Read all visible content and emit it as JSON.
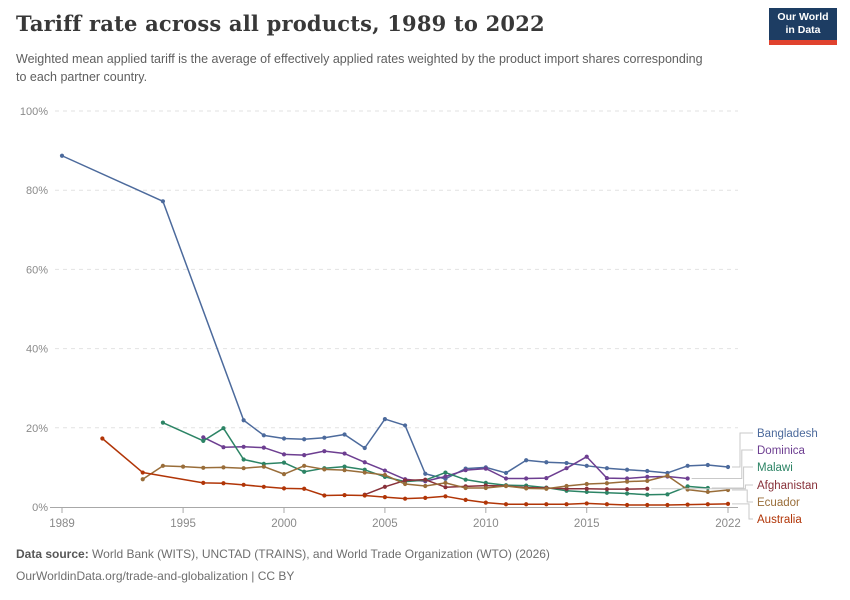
{
  "header": {
    "title": "Tariff rate across all products, 1989 to 2022",
    "subtitle": "Weighted mean applied tariff is the average of effectively applied rates weighted by the product import shares corresponding to each partner country.",
    "logo": {
      "line1": "Our World",
      "line2": "in Data",
      "bg_color": "#1d3d63",
      "accent_color": "#e0422e"
    }
  },
  "chart_data": {
    "type": "line",
    "title": "Tariff rate across all products, 1989 to 2022",
    "xlabel": "",
    "ylabel": "",
    "xlim": [
      1989,
      2022
    ],
    "ylim": [
      0,
      100
    ],
    "x_ticks": [
      1989,
      1995,
      2000,
      2005,
      2010,
      2015,
      2022
    ],
    "y_ticks": [
      0,
      20,
      40,
      60,
      80,
      100
    ],
    "y_tick_suffix": "%",
    "grid": "horizontal-dashed",
    "legend_position": "right",
    "series": [
      {
        "name": "Bangladesh",
        "color": "#4C6A9C",
        "points": [
          [
            1989,
            88.7
          ],
          [
            1994,
            77.2
          ],
          [
            1998,
            21.9
          ],
          [
            1999,
            18.1
          ],
          [
            2000,
            17.3
          ],
          [
            2001,
            17.1
          ],
          [
            2002,
            17.5
          ],
          [
            2003,
            18.3
          ],
          [
            2004,
            14.9
          ],
          [
            2005,
            22.2
          ],
          [
            2006,
            20.6
          ],
          [
            2007,
            8.4
          ],
          [
            2008,
            7.1
          ],
          [
            2009,
            9.7
          ],
          [
            2010,
            10.0
          ],
          [
            2011,
            8.6
          ],
          [
            2012,
            11.8
          ],
          [
            2013,
            11.3
          ],
          [
            2014,
            11.1
          ],
          [
            2015,
            10.4
          ],
          [
            2016,
            9.8
          ],
          [
            2017,
            9.4
          ],
          [
            2018,
            9.1
          ],
          [
            2019,
            8.6
          ],
          [
            2020,
            10.4
          ],
          [
            2021,
            10.6
          ],
          [
            2022,
            10.1
          ]
        ]
      },
      {
        "name": "Dominica",
        "color": "#6D3E91",
        "points": [
          [
            1996,
            17.6
          ],
          [
            1997,
            15.1
          ],
          [
            1998,
            15.2
          ],
          [
            1999,
            15.0
          ],
          [
            2000,
            13.3
          ],
          [
            2001,
            13.1
          ],
          [
            2002,
            14.1
          ],
          [
            2003,
            13.5
          ],
          [
            2004,
            11.3
          ],
          [
            2005,
            9.2
          ],
          [
            2006,
            7.0
          ],
          [
            2007,
            6.5
          ],
          [
            2008,
            7.7
          ],
          [
            2009,
            9.3
          ],
          [
            2010,
            9.7
          ],
          [
            2011,
            7.2
          ],
          [
            2012,
            7.2
          ],
          [
            2013,
            7.3
          ],
          [
            2014,
            9.8
          ],
          [
            2015,
            12.7
          ],
          [
            2016,
            7.3
          ],
          [
            2017,
            7.2
          ],
          [
            2018,
            7.6
          ],
          [
            2019,
            7.7
          ],
          [
            2020,
            7.2
          ]
        ]
      },
      {
        "name": "Malawi",
        "color": "#2C8465",
        "points": [
          [
            1994,
            21.3
          ],
          [
            1996,
            16.7
          ],
          [
            1997,
            19.9
          ],
          [
            1998,
            12.0
          ],
          [
            1999,
            10.9
          ],
          [
            2000,
            11.2
          ],
          [
            2001,
            8.9
          ],
          [
            2002,
            9.8
          ],
          [
            2003,
            10.2
          ],
          [
            2004,
            9.4
          ],
          [
            2005,
            7.6
          ],
          [
            2006,
            6.4
          ],
          [
            2007,
            6.8
          ],
          [
            2008,
            8.7
          ],
          [
            2009,
            6.9
          ],
          [
            2010,
            6.1
          ],
          [
            2011,
            5.5
          ],
          [
            2012,
            5.4
          ],
          [
            2013,
            4.9
          ],
          [
            2014,
            4.1
          ],
          [
            2015,
            3.8
          ],
          [
            2016,
            3.6
          ],
          [
            2017,
            3.4
          ],
          [
            2018,
            3.1
          ],
          [
            2019,
            3.2
          ],
          [
            2020,
            5.2
          ],
          [
            2021,
            4.8
          ]
        ]
      },
      {
        "name": "Afghanistan",
        "color": "#883039",
        "points": [
          [
            2004,
            3.1
          ],
          [
            2005,
            5.1
          ],
          [
            2006,
            6.7
          ],
          [
            2007,
            6.9
          ],
          [
            2008,
            5.0
          ],
          [
            2009,
            5.2
          ],
          [
            2010,
            5.4
          ],
          [
            2011,
            5.3
          ],
          [
            2012,
            4.9
          ],
          [
            2013,
            4.8
          ],
          [
            2014,
            4.6
          ],
          [
            2015,
            4.6
          ],
          [
            2016,
            4.5
          ],
          [
            2017,
            4.5
          ],
          [
            2018,
            4.6
          ]
        ]
      },
      {
        "name": "Ecuador",
        "color": "#996D39",
        "points": [
          [
            1993,
            7.0
          ],
          [
            1994,
            10.4
          ],
          [
            1995,
            10.2
          ],
          [
            1996,
            9.9
          ],
          [
            1997,
            10.0
          ],
          [
            1998,
            9.8
          ],
          [
            1999,
            10.2
          ],
          [
            2000,
            8.3
          ],
          [
            2001,
            10.4
          ],
          [
            2002,
            9.5
          ],
          [
            2003,
            9.3
          ],
          [
            2004,
            8.7
          ],
          [
            2005,
            8.1
          ],
          [
            2006,
            5.8
          ],
          [
            2007,
            5.3
          ],
          [
            2008,
            6.1
          ],
          [
            2009,
            4.8
          ],
          [
            2010,
            4.8
          ],
          [
            2011,
            5.3
          ],
          [
            2012,
            4.7
          ],
          [
            2013,
            4.6
          ],
          [
            2014,
            5.3
          ],
          [
            2015,
            5.8
          ],
          [
            2016,
            6.0
          ],
          [
            2017,
            6.4
          ],
          [
            2018,
            6.6
          ],
          [
            2019,
            7.9
          ],
          [
            2020,
            4.4
          ],
          [
            2021,
            3.8
          ],
          [
            2022,
            4.3
          ]
        ]
      },
      {
        "name": "Australia",
        "color": "#B13507",
        "points": [
          [
            1991,
            17.3
          ],
          [
            1993,
            8.7
          ],
          [
            1996,
            6.1
          ],
          [
            1997,
            6.0
          ],
          [
            1998,
            5.6
          ],
          [
            1999,
            5.1
          ],
          [
            2000,
            4.7
          ],
          [
            2001,
            4.6
          ],
          [
            2002,
            2.9
          ],
          [
            2003,
            3.0
          ],
          [
            2004,
            2.9
          ],
          [
            2005,
            2.5
          ],
          [
            2006,
            2.1
          ],
          [
            2007,
            2.3
          ],
          [
            2008,
            2.7
          ],
          [
            2009,
            1.8
          ],
          [
            2010,
            1.1
          ],
          [
            2011,
            0.7
          ],
          [
            2012,
            0.7
          ],
          [
            2013,
            0.7
          ],
          [
            2014,
            0.7
          ],
          [
            2015,
            0.9
          ],
          [
            2016,
            0.7
          ],
          [
            2017,
            0.5
          ],
          [
            2018,
            0.5
          ],
          [
            2019,
            0.5
          ],
          [
            2020,
            0.6
          ],
          [
            2021,
            0.7
          ],
          [
            2022,
            0.8
          ]
        ]
      }
    ]
  },
  "colors": {
    "grid": "#e2e2e2",
    "zero_line": "#a8a8a8",
    "axis_text": "#8a8a8a",
    "tick": "#a8a8a8",
    "connector": "#c9c9c9"
  },
  "footer": {
    "source_label": "Data source:",
    "source_text": " World Bank (WITS), UNCTAD (TRAINS), and World Trade Organization (WTO) (2026)",
    "link": "OurWorldinData.org/trade-and-globalization",
    "license": " | CC BY"
  }
}
